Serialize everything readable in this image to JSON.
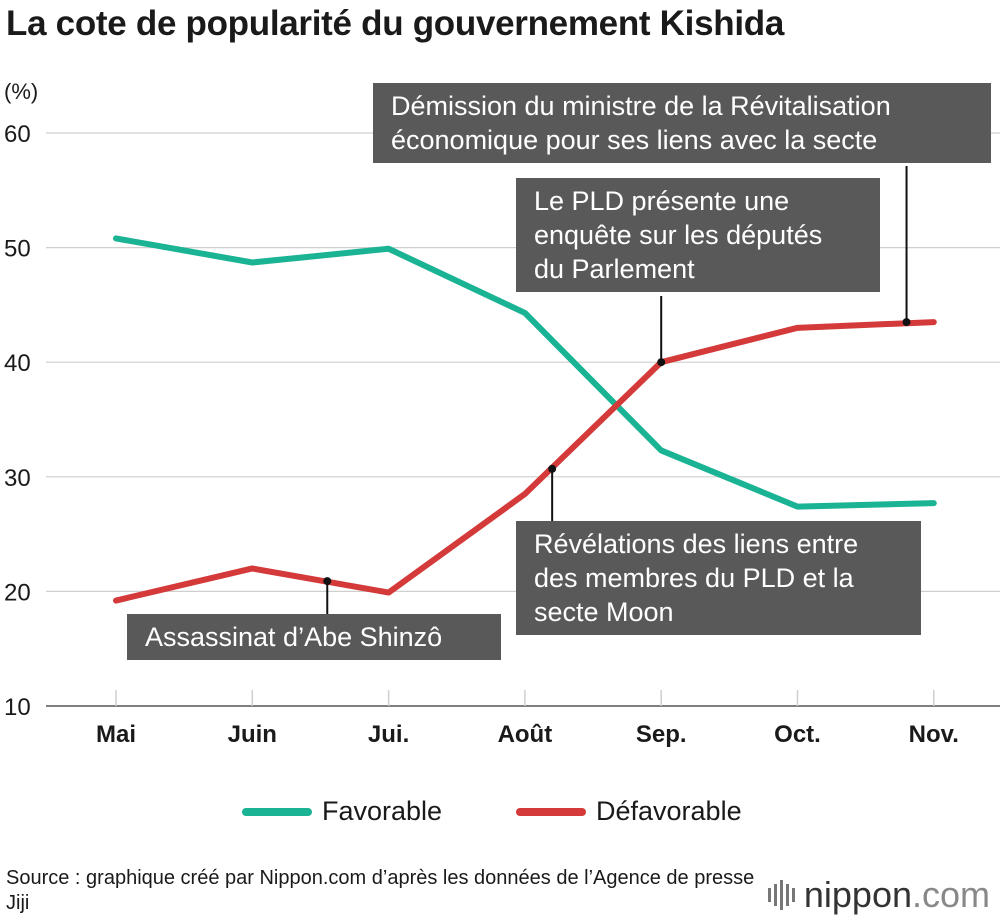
{
  "chart_data": {
    "type": "line",
    "title": "La cote de popularité du gouvernement Kishida",
    "ylabel": "(%)",
    "ylim": [
      10,
      60
    ],
    "yticks": [
      10,
      20,
      30,
      40,
      50,
      60
    ],
    "categories": [
      "Mai",
      "Juin",
      "Jui.",
      "Août",
      "Sep.",
      "Oct.",
      "Nov."
    ],
    "series": [
      {
        "name": "Favorable",
        "color": "#1ab394",
        "values": [
          50.8,
          48.7,
          49.9,
          44.3,
          32.3,
          27.4,
          27.7
        ]
      },
      {
        "name": "Défavorable",
        "color": "#d43a3a",
        "values": [
          19.2,
          22.0,
          19.9,
          28.5,
          40.0,
          43.0,
          43.5
        ]
      }
    ],
    "annotations": [
      {
        "id": "abe",
        "text": "Assassinat d’Abe Shinzô",
        "x": 1.55,
        "y": 20.9
      },
      {
        "id": "moon",
        "text": "Révélations des liens entre\ndes membres du PLD et la\nsecte Moon",
        "x": 3.2,
        "y": 30.7
      },
      {
        "id": "enquete",
        "text": "Le PLD présente une\nenquête sur les députés\ndu Parlement",
        "x": 4.0,
        "y": 40.0
      },
      {
        "id": "demission",
        "text": "Démission du ministre de la Révitalisation\néconomique pour ses liens avec la secte",
        "x": 5.8,
        "y": 43.5
      }
    ]
  },
  "source": "Source : graphique créé par Nippon.com d’après les données de l’Agence de presse Jiji",
  "logo": {
    "name": "nippon",
    "tld": ".com"
  }
}
